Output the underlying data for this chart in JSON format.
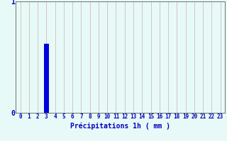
{
  "hours": [
    0,
    1,
    2,
    3,
    4,
    5,
    6,
    7,
    8,
    9,
    10,
    11,
    12,
    13,
    14,
    15,
    16,
    17,
    18,
    19,
    20,
    21,
    22,
    23
  ],
  "values": [
    0,
    0,
    0,
    0.62,
    0,
    0,
    0,
    0,
    0,
    0,
    0,
    0,
    0,
    0,
    0,
    0,
    0,
    0,
    0,
    0,
    0,
    0,
    0,
    0
  ],
  "bar_color": "#0000dd",
  "background_color": "#e8faf8",
  "grid_color_v": "#c8b0b0",
  "grid_color_h": "#aacccc",
  "xlabel": "Précipitations 1h ( mm )",
  "xlabel_color": "#0000bb",
  "xlabel_fontsize": 7,
  "tick_color": "#0000bb",
  "tick_fontsize": 5.5,
  "ytick_color": "#0000bb",
  "ylim": [
    0,
    1
  ],
  "xlim": [
    -0.5,
    23.5
  ],
  "bar_width": 0.6,
  "spine_color": "#707070",
  "yticks": [
    0,
    1
  ],
  "ytick_labels": [
    "0",
    "1"
  ]
}
